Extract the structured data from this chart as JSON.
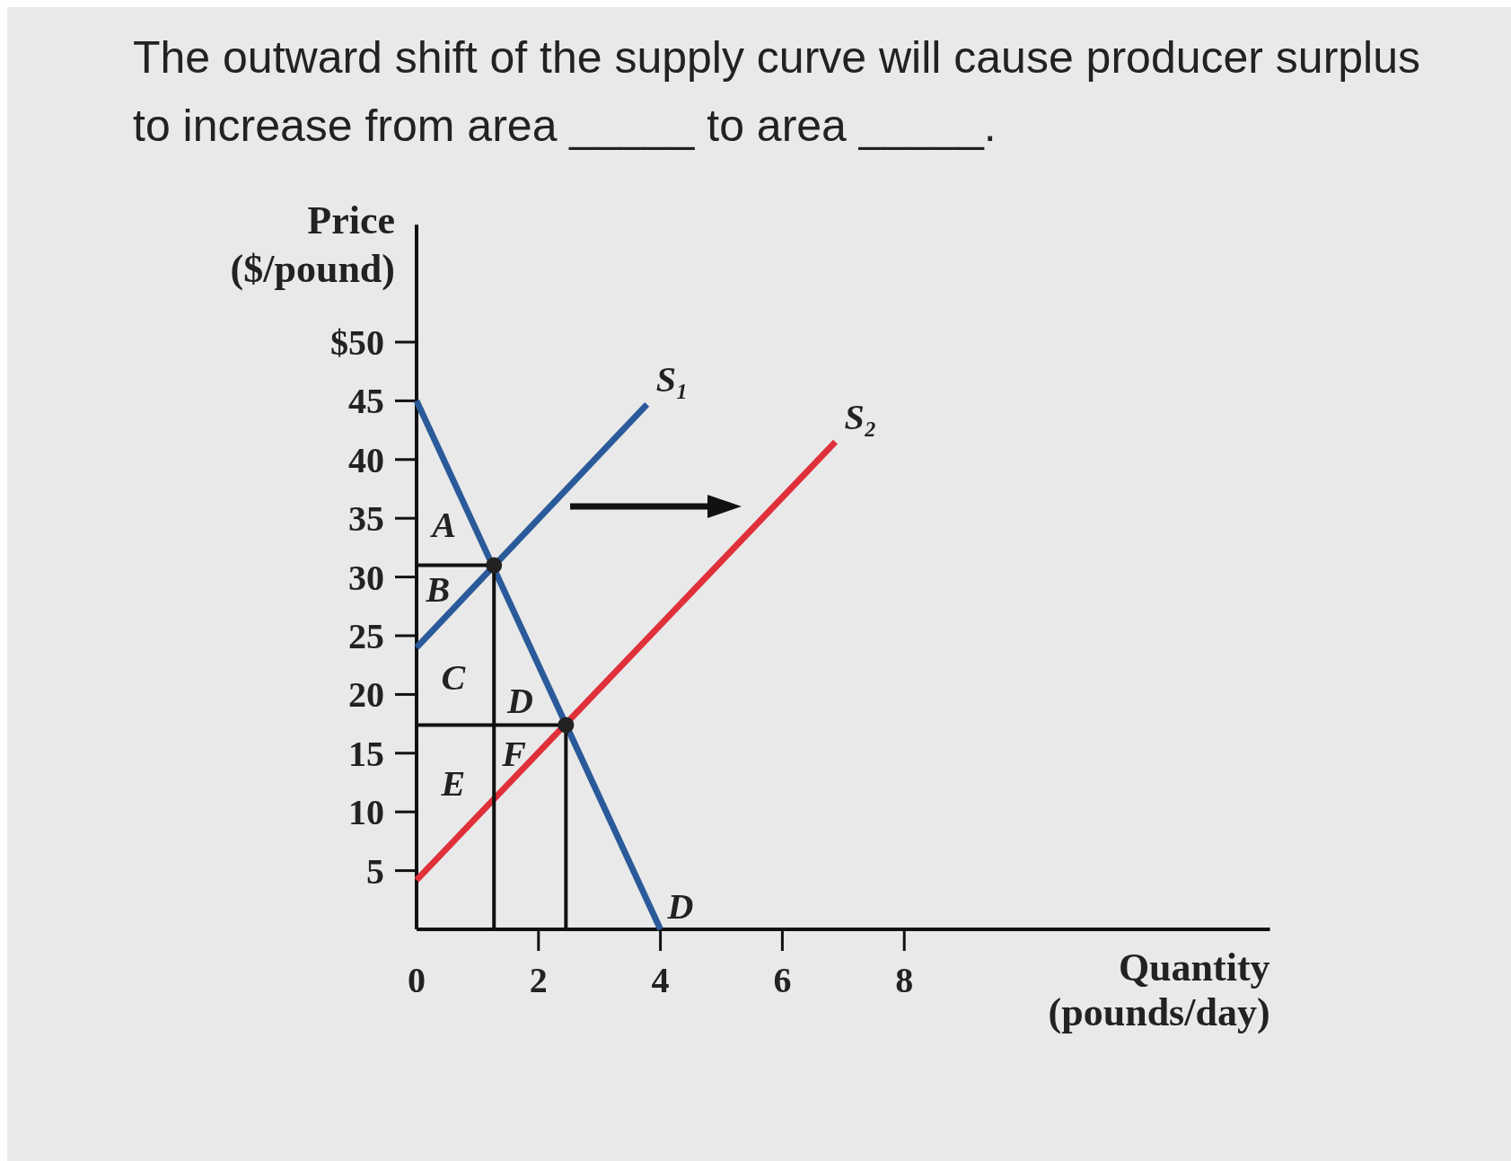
{
  "chart_data": {
    "type": "line",
    "title": "The outward shift of the supply curve will cause producer surplus to increase from area _____ to area _____.",
    "xlabel": "Quantity (pounds/day)",
    "ylabel": "Price ($/pound)",
    "xlim": [
      0,
      14
    ],
    "ylim": [
      0,
      60
    ],
    "xticks": [
      {
        "value": 0,
        "label": "0"
      },
      2,
      4,
      6,
      8
    ],
    "yticks": [
      5,
      10,
      15,
      20,
      25,
      30,
      35,
      40,
      45,
      {
        "value": 50,
        "label": "$50"
      }
    ],
    "grid": false,
    "line_style": "solid",
    "series": [
      {
        "name": "D",
        "color": "#2a5a9a",
        "x": [
          0,
          4
        ],
        "values": [
          45,
          0
        ]
      },
      {
        "name": "S₁",
        "color": "#2a5a9a",
        "x": [
          0,
          3.78
        ],
        "values": [
          24,
          44.7
        ]
      },
      {
        "name": "S₂",
        "color": "#e0303a",
        "x": [
          0,
          6.87
        ],
        "values": [
          4.2,
          41.5
        ]
      },
      {
        "color": "#111111",
        "x": [
          0,
          1.27,
          1.27
        ],
        "values": [
          31,
          31,
          0
        ]
      },
      {
        "color": "#111111",
        "x": [
          0,
          2.45,
          2.45
        ],
        "values": [
          17.4,
          17.4,
          0
        ]
      },
      {
        "type": "scatter",
        "color": "#222222",
        "x": [
          1.27,
          2.45
        ],
        "values": [
          31,
          17.4
        ]
      }
    ],
    "annotations": [
      "A",
      "B",
      "C",
      "D",
      "F",
      "E"
    ]
  }
}
